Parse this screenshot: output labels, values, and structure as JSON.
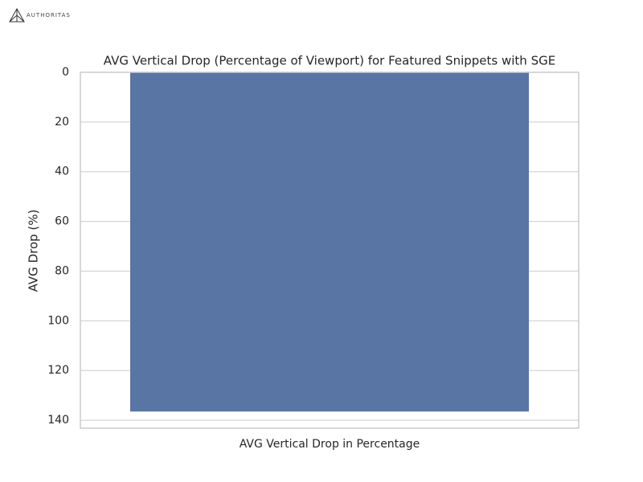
{
  "logo": "AUTHORITAS",
  "chart_data": {
    "type": "bar",
    "title": "AVG Vertical Drop (Percentage of Viewport) for Featured Snippets with SGE",
    "x_label": "AVG Vertical Drop in Percentage",
    "y_label": "AVG Drop (%)",
    "categories": [
      null
    ],
    "values": [
      136.5
    ],
    "color": "#5975a4",
    "ylim": [
      0,
      143.2
    ],
    "yticks": [
      0,
      20,
      40,
      60,
      80,
      100,
      120,
      140
    ],
    "y_inverted": true,
    "grid": true
  }
}
